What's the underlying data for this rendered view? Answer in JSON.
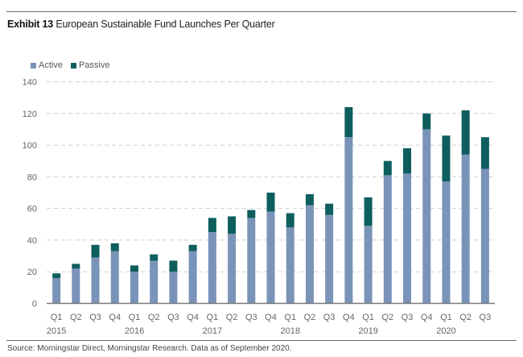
{
  "header": {
    "exhibit": "Exhibit 13",
    "title": "European Sustainable Fund Launches Per Quarter"
  },
  "source": "Source: Morningstar Direct, Morningstar Research. Data as of September 2020.",
  "colors": {
    "active": "#7a93b8",
    "passive": "#0e5e5e",
    "grid": "#cfcfcf",
    "axis": "#7a7a7a"
  },
  "chart_data": {
    "type": "bar",
    "stacked": true,
    "title": "European Sustainable Fund Launches Per Quarter",
    "xlabel": "",
    "ylabel": "",
    "ylim": [
      0,
      140
    ],
    "yticks": [
      0,
      20,
      40,
      60,
      80,
      100,
      120,
      140
    ],
    "grid": true,
    "legend_position": "top-left",
    "categories": [
      "Q1 2015",
      "Q2 2015",
      "Q3 2015",
      "Q4 2015",
      "Q1 2016",
      "Q2 2016",
      "Q3 2016",
      "Q4 2016",
      "Q1 2017",
      "Q2 2017",
      "Q3 2017",
      "Q4 2017",
      "Q1 2018",
      "Q2 2018",
      "Q3 2018",
      "Q4 2018",
      "Q1 2019",
      "Q2 2019",
      "Q3 2019",
      "Q4 2019",
      "Q1 2020",
      "Q2 2020",
      "Q3 2020"
    ],
    "quarter_labels": [
      "Q1",
      "Q2",
      "Q3",
      "Q4",
      "Q1",
      "Q2",
      "Q3",
      "Q4",
      "Q1",
      "Q2",
      "Q3",
      "Q4",
      "Q1",
      "Q2",
      "Q3",
      "Q4",
      "Q1",
      "Q2",
      "Q3",
      "Q4",
      "Q1",
      "Q2",
      "Q3"
    ],
    "year_labels": [
      {
        "label": "2015",
        "index": 0
      },
      {
        "label": "2016",
        "index": 4
      },
      {
        "label": "2017",
        "index": 8
      },
      {
        "label": "2018",
        "index": 12
      },
      {
        "label": "2019",
        "index": 16
      },
      {
        "label": "2020",
        "index": 20
      }
    ],
    "series": [
      {
        "name": "Active",
        "values": [
          16,
          22,
          29,
          33,
          20,
          27,
          20,
          33,
          45,
          44,
          54,
          58,
          48,
          62,
          56,
          105,
          49,
          81,
          82,
          110,
          77,
          94,
          85
        ]
      },
      {
        "name": "Passive",
        "values": [
          3,
          3,
          8,
          5,
          4,
          4,
          7,
          4,
          9,
          11,
          5,
          12,
          9,
          7,
          7,
          19,
          18,
          9,
          16,
          10,
          29,
          28,
          20
        ]
      }
    ]
  }
}
